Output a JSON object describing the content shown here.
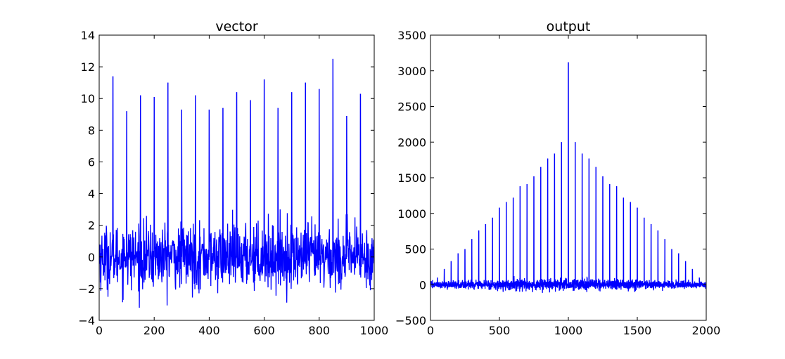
{
  "figure": {
    "background": "#ffffff",
    "line_color": "#0000ff"
  },
  "chart_data": [
    {
      "type": "line",
      "title": "vector",
      "xlim": [
        0,
        1000
      ],
      "ylim": [
        -4,
        14
      ],
      "xticks": [
        "0",
        "200",
        "400",
        "600",
        "800",
        "1000"
      ],
      "yticks": [
        "−4",
        "−2",
        "0",
        "2",
        "4",
        "6",
        "8",
        "10",
        "12",
        "14"
      ],
      "noise": {
        "n_points": 1000,
        "mean": 0,
        "spread": 1.0,
        "range": [
          -3.2,
          3.3
        ]
      },
      "spikes": {
        "x": [
          50,
          100,
          150,
          200,
          250,
          300,
          350,
          400,
          450,
          500,
          550,
          600,
          650,
          700,
          750,
          800,
          850,
          900,
          950
        ],
        "y": [
          11.4,
          9.2,
          10.2,
          10.1,
          11.0,
          9.3,
          10.2,
          9.3,
          9.4,
          10.4,
          9.9,
          11.2,
          9.4,
          10.4,
          11.0,
          10.6,
          12.5,
          8.9,
          10.3
        ]
      },
      "grid": false,
      "legend": null
    },
    {
      "type": "line",
      "title": "output",
      "xlim": [
        0,
        2000
      ],
      "ylim": [
        -500,
        3500
      ],
      "xticks": [
        "0",
        "500",
        "1000",
        "1500",
        "2000"
      ],
      "yticks": [
        "−500",
        "0",
        "500",
        "1000",
        "1500",
        "2000",
        "2500",
        "3000",
        "3500"
      ],
      "noise": {
        "n_points": 2000,
        "mean": 0,
        "spread": 40,
        "range": [
          -150,
          150
        ]
      },
      "spikes": {
        "x": [
          50,
          100,
          150,
          200,
          250,
          300,
          350,
          400,
          450,
          500,
          550,
          600,
          650,
          700,
          750,
          800,
          850,
          900,
          950,
          1000,
          1050,
          1100,
          1150,
          1200,
          1250,
          1300,
          1350,
          1400,
          1450,
          1500,
          1550,
          1600,
          1650,
          1700,
          1750,
          1800,
          1850,
          1900,
          1950
        ],
        "y": [
          100,
          220,
          330,
          440,
          500,
          640,
          760,
          850,
          940,
          1080,
          1160,
          1220,
          1380,
          1410,
          1520,
          1650,
          1770,
          1840,
          2000,
          3120,
          2000,
          1840,
          1770,
          1650,
          1520,
          1410,
          1380,
          1220,
          1160,
          1080,
          940,
          850,
          760,
          640,
          500,
          440,
          330,
          220,
          100
        ]
      },
      "grid": false,
      "legend": null
    }
  ]
}
